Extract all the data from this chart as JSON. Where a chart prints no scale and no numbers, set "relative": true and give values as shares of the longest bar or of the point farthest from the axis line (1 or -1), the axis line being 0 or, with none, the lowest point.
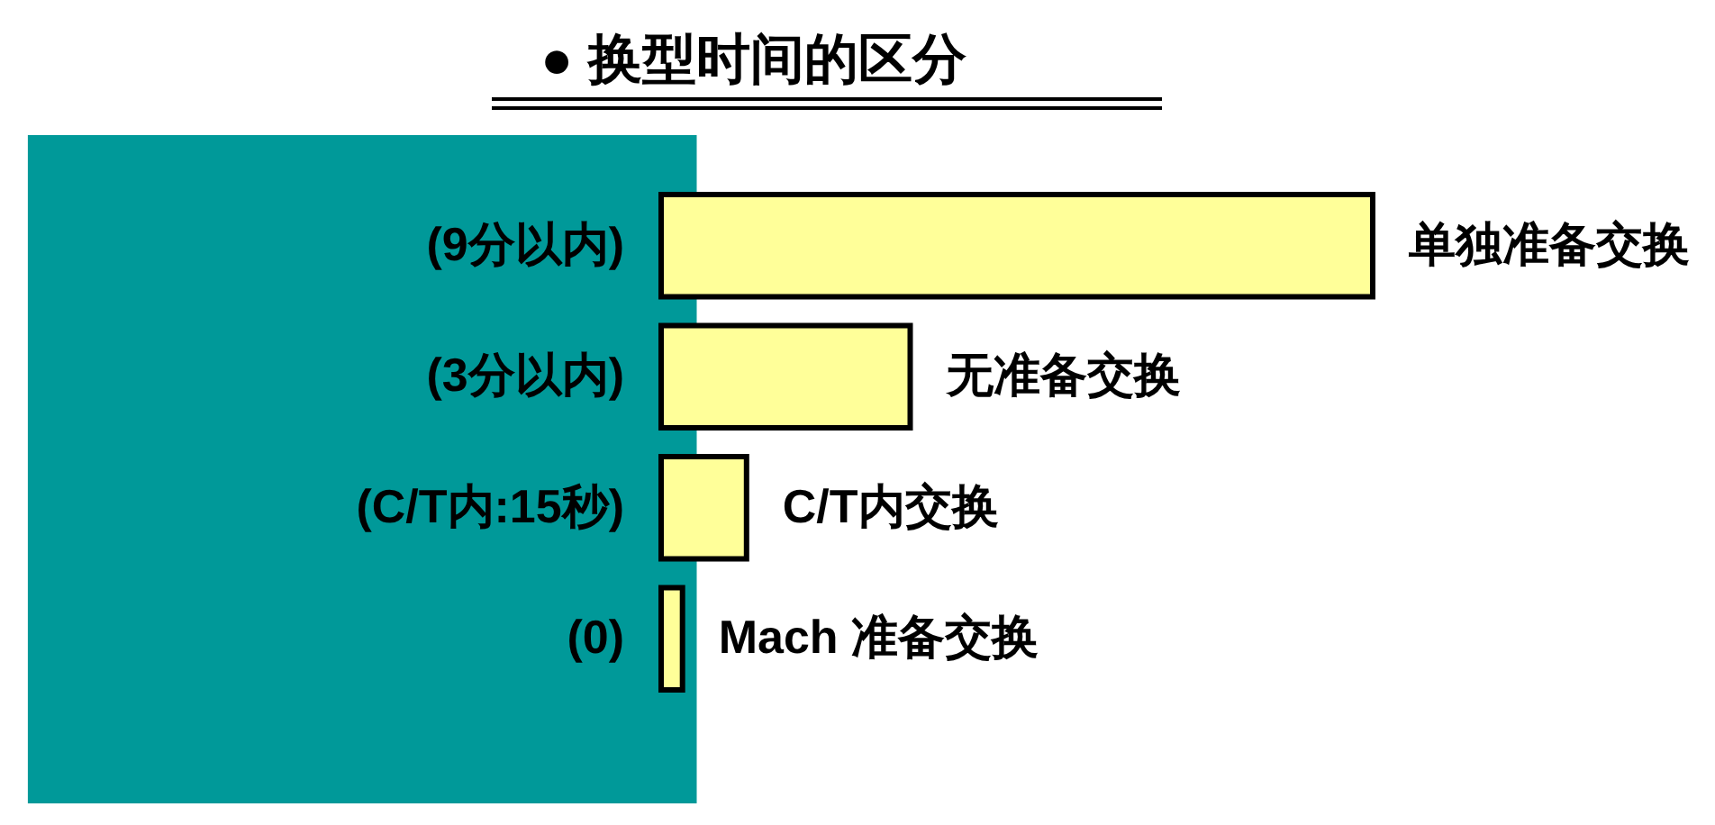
{
  "chart_data": {
    "type": "bar",
    "orientation": "horizontal",
    "relative": true,
    "title": "● 换型时间的区分",
    "categories": [
      "(9分以内)",
      "(3分以内)",
      "(C/T内:15秒)",
      "(0)"
    ],
    "values": [
      1,
      0.35,
      0.12,
      0.03
    ],
    "color": "#ffff99",
    "bands": [
      {
        "axis": "x",
        "from": -0.89,
        "to": 0.05,
        "color": "#009999"
      }
    ],
    "annotations": [
      "单独准备交换",
      "无准备交换",
      "C/T内交换",
      "Mach 准备交换"
    ]
  }
}
